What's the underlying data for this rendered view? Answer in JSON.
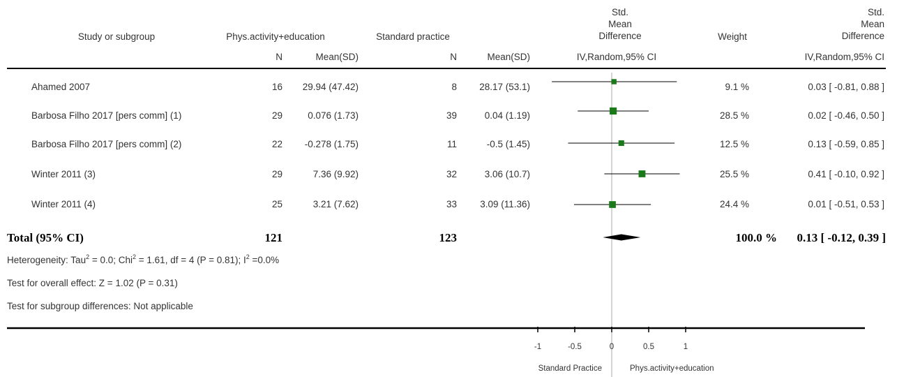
{
  "headers": {
    "study": "Study or subgroup",
    "group1": "Phys.activity+education",
    "group2": "Standard practice",
    "smd_line1": "Std.",
    "smd_line2": "Mean",
    "smd_line3": "Difference",
    "weight": "Weight",
    "n": "N",
    "meansd": "Mean(SD)",
    "method": "IV,Random,95% CI"
  },
  "rows": [
    {
      "study": "Ahamed 2007",
      "n1": "16",
      "m1": "29.94 (47.42)",
      "n2": "8",
      "m2": "28.17 (53.1)",
      "weight": "9.1 %",
      "ci": "0.03 [ -0.81, 0.88 ]"
    },
    {
      "study": "Barbosa Filho 2017 [pers comm] (1)",
      "n1": "29",
      "m1": "0.076 (1.73)",
      "n2": "39",
      "m2": "0.04 (1.19)",
      "weight": "28.5 %",
      "ci": "0.02 [ -0.46, 0.50 ]"
    },
    {
      "study": "Barbosa Filho 2017 [pers comm] (2)",
      "n1": "22",
      "m1": "-0.278 (1.75)",
      "n2": "11",
      "m2": "-0.5 (1.45)",
      "weight": "12.5 %",
      "ci": "0.13 [ -0.59, 0.85 ]"
    },
    {
      "study": "Winter 2011 (3)",
      "n1": "29",
      "m1": "7.36 (9.92)",
      "n2": "32",
      "m2": "3.06 (10.7)",
      "weight": "25.5 %",
      "ci": "0.41 [ -0.10, 0.92 ]"
    },
    {
      "study": "Winter 2011 (4)",
      "n1": "25",
      "m1": "3.21 (7.62)",
      "n2": "33",
      "m2": "3.09 (11.36)",
      "weight": "24.4 %",
      "ci": "0.01 [ -0.51, 0.53 ]"
    }
  ],
  "total": {
    "label": "Total (95% CI)",
    "n1": "121",
    "n2": "123",
    "weight": "100.0 %",
    "ci": "0.13 [ -0.12, 0.39 ]"
  },
  "footer": {
    "test_overall": "Test for overall effect: Z = 1.02 (P = 0.31)",
    "subgroup": "Test for subgroup differences: Not applicable"
  },
  "heterogeneity": {
    "p1": "Heterogeneity: Tau",
    "sup1": "2",
    "p2": " = 0.0; Chi",
    "sup2": "2",
    "p3": " = 1.61, df = 4 (P = 0.81); I",
    "sup3": "2",
    "p4": " =0.0%"
  },
  "axis": {
    "left_label": "Standard Practice",
    "right_label": "Phys.activity+education"
  },
  "chart_data": {
    "type": "forest",
    "x_range": [
      -1,
      1
    ],
    "ticks": [
      {
        "value": -1,
        "label": "-1"
      },
      {
        "value": -0.5,
        "label": "-0.5"
      },
      {
        "value": 0,
        "label": "0"
      },
      {
        "value": 0.5,
        "label": "0.5"
      },
      {
        "value": 1,
        "label": "1"
      }
    ],
    "studies": [
      {
        "est": 0.03,
        "lo": -0.81,
        "hi": 0.88,
        "weight": 9.1
      },
      {
        "est": 0.02,
        "lo": -0.46,
        "hi": 0.5,
        "weight": 28.5
      },
      {
        "est": 0.13,
        "lo": -0.59,
        "hi": 0.85,
        "weight": 12.5
      },
      {
        "est": 0.41,
        "lo": -0.1,
        "hi": 0.92,
        "weight": 25.5
      },
      {
        "est": 0.01,
        "lo": -0.51,
        "hi": 0.53,
        "weight": 24.4
      }
    ],
    "pooled": {
      "est": 0.13,
      "lo": -0.12,
      "hi": 0.39
    },
    "marker_color": "#1a7a1a",
    "diamond_color": "#000000"
  }
}
